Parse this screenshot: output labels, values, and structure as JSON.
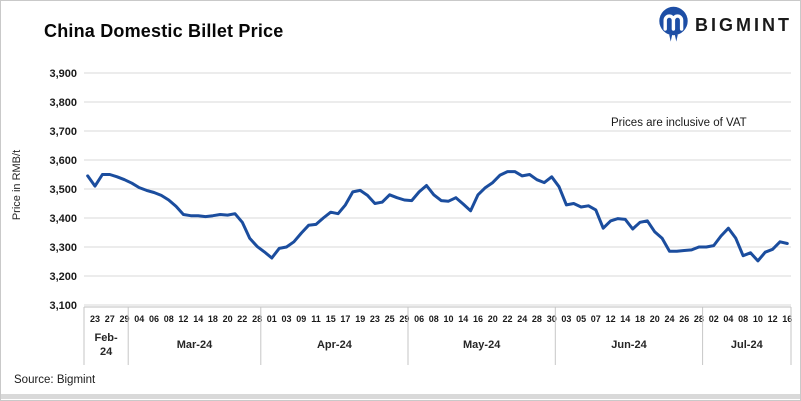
{
  "header": {
    "title": "China Domestic Billet Price"
  },
  "logo": {
    "text": "BIGMINT",
    "color": "#1d4ea5"
  },
  "note": "Prices are inclusive of VAT",
  "footer": {
    "source": "Source: Bigmint"
  },
  "colors": {
    "line": "#1b4d9e",
    "grid": "#d9d9d9",
    "axis": "#bfbfbf",
    "cell_border": "#c6c6c6",
    "tick_text": "#1a1a1a"
  },
  "chart_data": {
    "type": "line",
    "title": "China Domestic Billet Price",
    "ylabel": "Price in RMB/t",
    "ylim": [
      3100,
      3900
    ],
    "y_tick_step": 100,
    "y_tick_labels": [
      "3,900",
      "3,800",
      "3,700",
      "3,600",
      "3,500",
      "3,400",
      "3,300",
      "3,200",
      "3,100"
    ],
    "grid": "horizontal",
    "legend": "none",
    "annotation": "Prices are inclusive of VAT",
    "tick_every": 2,
    "months": [
      {
        "label": "Feb-24",
        "day_ticks": [
          "23",
          "27",
          "29"
        ],
        "values": [
          3545,
          3510,
          3550,
          3550,
          3542,
          3532
        ]
      },
      {
        "label": "Mar-24",
        "day_ticks": [
          "04",
          "06",
          "08",
          "12",
          "14",
          "18",
          "20",
          "22",
          "28"
        ],
        "values": [
          3520,
          3505,
          3495,
          3488,
          3478,
          3462,
          3440,
          3412,
          3408,
          3408,
          3405,
          3408,
          3412,
          3410,
          3415,
          3385,
          3330,
          3302
        ]
      },
      {
        "label": "Apr-24",
        "day_ticks": [
          "01",
          "03",
          "09",
          "11",
          "15",
          "17",
          "19",
          "23",
          "25",
          "29"
        ],
        "values": [
          3283,
          3262,
          3295,
          3300,
          3318,
          3348,
          3375,
          3378,
          3400,
          3420,
          3415,
          3445,
          3490,
          3495,
          3478,
          3450,
          3455,
          3480,
          3470,
          3462
        ]
      },
      {
        "label": "May-24",
        "day_ticks": [
          "06",
          "08",
          "10",
          "14",
          "16",
          "20",
          "22",
          "24",
          "28",
          "30"
        ],
        "values": [
          3460,
          3490,
          3512,
          3480,
          3460,
          3458,
          3470,
          3448,
          3425,
          3480,
          3505,
          3522,
          3548,
          3560,
          3560,
          3545,
          3550,
          3532,
          3522,
          3542
        ]
      },
      {
        "label": "Jun-24",
        "day_ticks": [
          "03",
          "05",
          "07",
          "12",
          "14",
          "18",
          "20",
          "24",
          "26",
          "28"
        ],
        "values": [
          3508,
          3445,
          3450,
          3438,
          3442,
          3428,
          3365,
          3390,
          3398,
          3395,
          3362,
          3385,
          3390,
          3352,
          3330,
          3285,
          3285,
          3288,
          3290,
          3300
        ]
      },
      {
        "label": "Jul-24",
        "day_ticks": [
          "02",
          "04",
          "08",
          "10",
          "12",
          "16"
        ],
        "values": [
          3300,
          3305,
          3338,
          3365,
          3330,
          3270,
          3280,
          3252,
          3282,
          3292,
          3318,
          3312
        ]
      }
    ]
  }
}
